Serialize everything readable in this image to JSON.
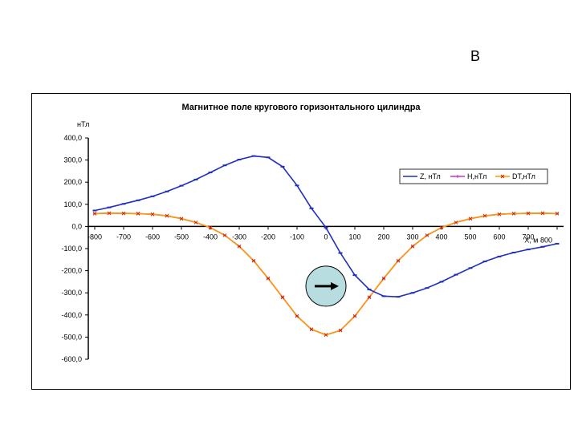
{
  "slide": {
    "corner_label": "В"
  },
  "chart_data": {
    "type": "line",
    "title": "Магнитное поле кругового горизонтального цилиндра",
    "ylabel": "нТл",
    "xlabel": "X, м",
    "xlim": [
      -800,
      800
    ],
    "ylim": [
      -600,
      400
    ],
    "x_ticks": [
      -800,
      -700,
      -600,
      -500,
      -400,
      -300,
      -200,
      -100,
      0,
      100,
      200,
      300,
      400,
      500,
      600,
      700,
      800
    ],
    "x_tick_labels": [
      "-800",
      "-700",
      "-600",
      "-500",
      "-400",
      "-300",
      "-200",
      "-100",
      "0",
      "100",
      "200",
      "300",
      "400",
      "500",
      "600",
      "700",
      "800"
    ],
    "y_ticks": [
      400,
      300,
      200,
      100,
      0,
      -100,
      -200,
      -300,
      -400,
      -500,
      -600
    ],
    "y_tick_labels": [
      "400,0",
      "300,0",
      "200,0",
      "100,0",
      "0,0",
      "-100,0",
      "-200,0",
      "-300,0",
      "-400,0",
      "-500,0",
      "-600,0"
    ],
    "legend_position": "right",
    "series": [
      {
        "name": "Z, нТл",
        "color": "#1f2fbf",
        "marker": "dash",
        "x": [
          -800,
          -750,
          -700,
          -650,
          -600,
          -550,
          -500,
          -450,
          -400,
          -350,
          -300,
          -250,
          -200,
          -150,
          -100,
          -50,
          0,
          50,
          100,
          150,
          200,
          250,
          300,
          350,
          400,
          450,
          500,
          550,
          600,
          650,
          700,
          750,
          800
        ],
        "values": [
          72,
          86,
          102,
          118,
          136,
          158,
          184,
          212,
          244,
          276,
          302,
          318,
          312,
          270,
          185,
          82,
          -5,
          -120,
          -220,
          -285,
          -315,
          -318,
          -300,
          -278,
          -250,
          -218,
          -188,
          -158,
          -136,
          -118,
          -104,
          -92,
          -78
        ]
      },
      {
        "name": "H,нТл",
        "color": "#cc33cc",
        "marker": "plus",
        "x": [
          -800,
          -750,
          -700,
          -650,
          -600,
          -550,
          -500,
          -450,
          -400,
          -350,
          -300,
          -250,
          -200,
          -150,
          -100,
          -50,
          0,
          50,
          100,
          150,
          200,
          250,
          300,
          350,
          400,
          450,
          500,
          550,
          600,
          650,
          700,
          750,
          800
        ],
        "values": [
          58,
          60,
          59,
          58,
          55,
          48,
          35,
          18,
          -5,
          -40,
          -90,
          -155,
          -235,
          -320,
          -405,
          -465,
          -490,
          -470,
          -405,
          -320,
          -235,
          -155,
          -90,
          -40,
          -5,
          18,
          35,
          48,
          55,
          58,
          59,
          60,
          58
        ]
      },
      {
        "name": "DT,нТл",
        "color": "#ff9900",
        "marker": "x",
        "x": [
          -800,
          -750,
          -700,
          -650,
          -600,
          -550,
          -500,
          -450,
          -400,
          -350,
          -300,
          -250,
          -200,
          -150,
          -100,
          -50,
          0,
          50,
          100,
          150,
          200,
          250,
          300,
          350,
          400,
          450,
          500,
          550,
          600,
          650,
          700,
          750,
          800
        ],
        "values": [
          58,
          60,
          59,
          58,
          55,
          48,
          35,
          18,
          -5,
          -40,
          -90,
          -155,
          -235,
          -320,
          -405,
          -465,
          -490,
          -470,
          -405,
          -320,
          -235,
          -155,
          -90,
          -40,
          -5,
          18,
          35,
          48,
          55,
          58,
          59,
          60,
          58
        ]
      }
    ],
    "inset": {
      "shape": "circle",
      "fill": "#b7dde0",
      "arrow_direction": "right",
      "center_x": 0,
      "center_y": -270
    }
  }
}
